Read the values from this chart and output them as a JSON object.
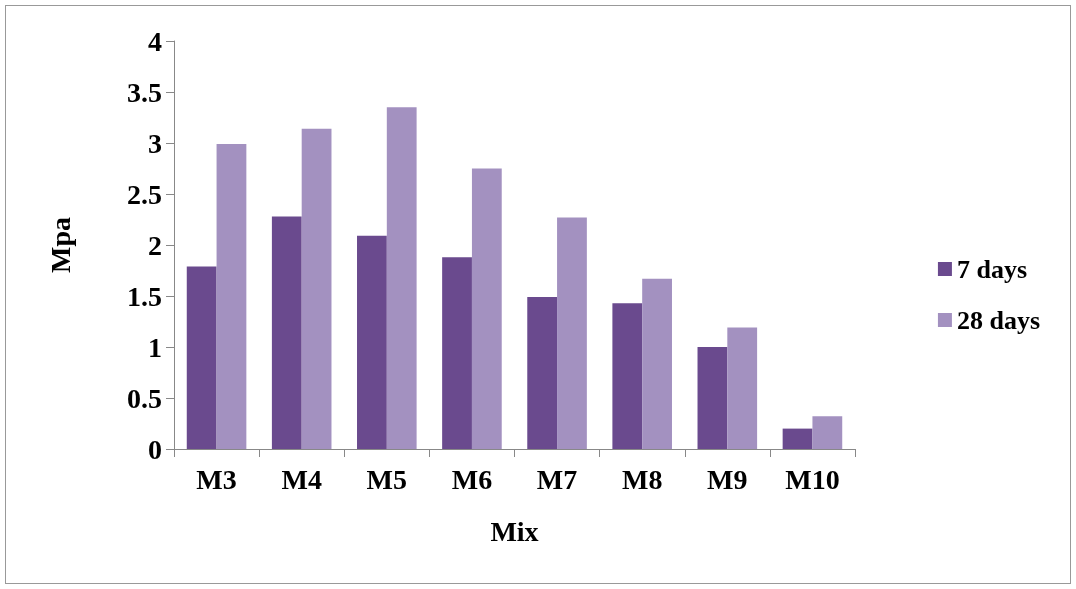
{
  "chart_data": {
    "type": "bar",
    "xlabel": "Mix",
    "ylabel": "Mpa",
    "categories": [
      "M3",
      "M4",
      "M5",
      "M6",
      "M7",
      "M8",
      "M9",
      "M10"
    ],
    "series": [
      {
        "name": "7 days",
        "color": "#6a4a8e",
        "values": [
          1.79,
          2.28,
          2.09,
          1.88,
          1.49,
          1.43,
          1.0,
          0.2
        ]
      },
      {
        "name": "28 days",
        "color": "#a391c0",
        "values": [
          2.99,
          3.14,
          3.35,
          2.75,
          2.27,
          1.67,
          1.19,
          0.32
        ]
      }
    ],
    "ylim": [
      0,
      4
    ],
    "yticks": [
      0,
      0.5,
      1,
      1.5,
      2,
      2.5,
      3,
      3.5,
      4
    ],
    "grid": false,
    "legend": "right"
  }
}
